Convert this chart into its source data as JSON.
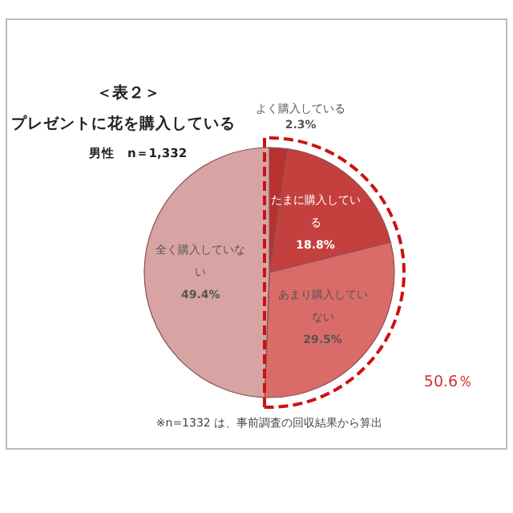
{
  "chart_data": {
    "type": "pie",
    "title": "＜表２＞",
    "subtitle": "プレゼントに花を購入している",
    "categories": [
      "よく購入している",
      "たまに購入している",
      "あまり購入していない",
      "全く購入していない"
    ],
    "values": [
      2.3,
      18.8,
      29.5,
      49.4
    ],
    "colors": [
      "#b8312f",
      "#c4403f",
      "#d96c69",
      "#d7a3a3"
    ],
    "value_labels": [
      "2.3%",
      "18.8%",
      "29.5%",
      "49.4%"
    ],
    "annotations": [
      "男性　n＝1,332",
      "50.6％",
      "※n=1332 は、事前調査の回収結果から算出"
    ]
  }
}
